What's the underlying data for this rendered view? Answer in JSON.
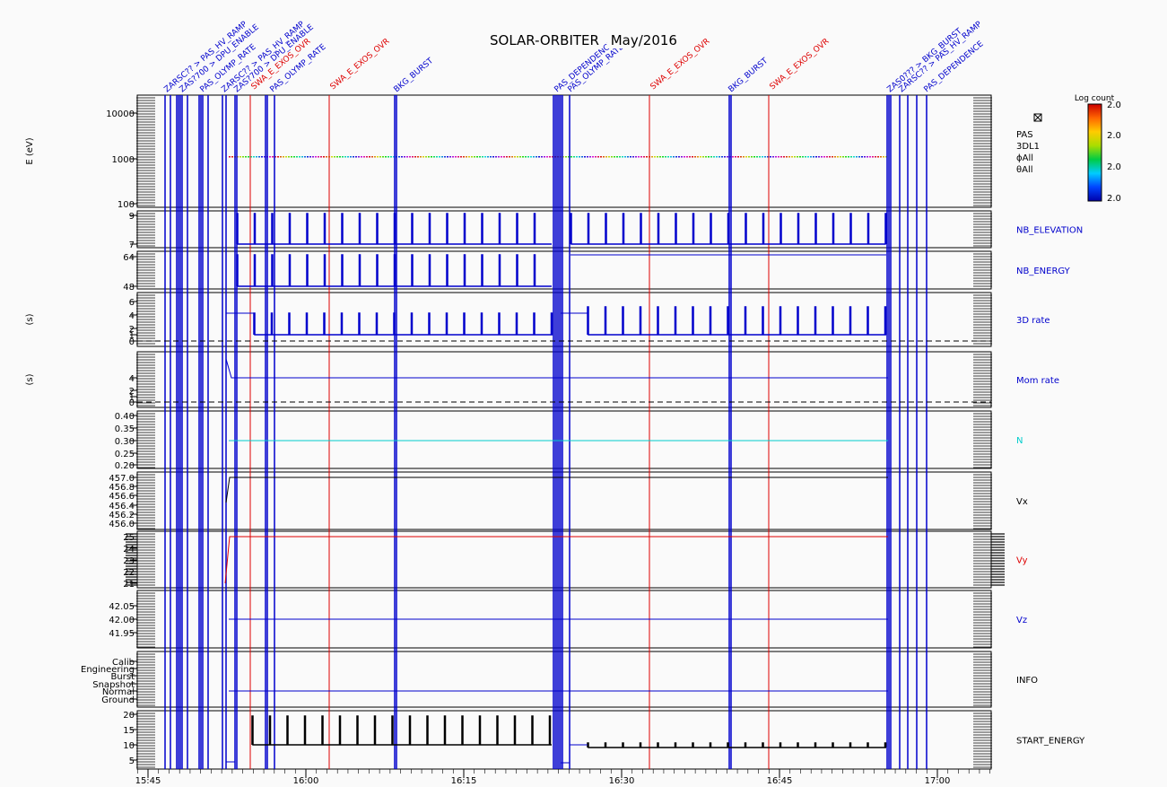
{
  "title": "SOLAR-ORBITER",
  "title_suffix": "May/2016",
  "chart_data": {
    "type": "line",
    "time_axis": {
      "ticks": [
        "15:45",
        "16:00",
        "16:15",
        "16:30",
        "16:45",
        "17:00"
      ],
      "range": [
        "15:45",
        "17:05"
      ]
    },
    "colorbar": {
      "title": "Log count",
      "ticks": [
        "2.0",
        "2.0",
        "2.0",
        "2.0"
      ]
    },
    "event_labels_blue": [
      "ZARSC?? > PAS_HV_RAMP",
      "ZAS?700 > DPU_ENABLE",
      "PAS_OLYMP_RATE",
      "BKG_BURST",
      "PAS_DEPENDENCE",
      "ZAS0??? > BKG_BURST"
    ],
    "event_labels_red": [
      "SWA_E_EXOS_OVR",
      "SWA_E_EXOS_OVR",
      "SWA_E_EXOS_OVR",
      "SWA_E_EXOS_OVR",
      "SWA_E_EXOS_OVR",
      "SWA_E_EXOS_OVR"
    ],
    "panels": [
      {
        "ylabel": "E (eV)",
        "right_label": "PAS\n3DL1\nϕAll\nθAll",
        "ticks": [
          "10000",
          "1000",
          "100"
        ],
        "type": "spectrogram",
        "line_value": 1000
      },
      {
        "ylabel": "",
        "right_label": "NB_ELEVATION",
        "ticks": [
          "9",
          "7"
        ],
        "baseline": 7,
        "peak": 9
      },
      {
        "ylabel": "",
        "right_label": "NB_ENERGY",
        "ticks": [
          "64",
          "48"
        ],
        "baseline": 48,
        "peak": 64
      },
      {
        "ylabel": "(s)",
        "right_label": "3D rate",
        "ticks": [
          "6",
          "4",
          "2",
          "1",
          "0"
        ],
        "baseline": 1,
        "peak": 4
      },
      {
        "ylabel": "(s)",
        "right_label": "Mom rate",
        "ticks": [
          "4",
          "2",
          "1",
          "0"
        ],
        "value": 4
      },
      {
        "ylabel": "",
        "right_label": "N",
        "ticks": [
          "0.40",
          "0.35",
          "0.30",
          "0.25",
          "0.20"
        ],
        "value": 0.3
      },
      {
        "ylabel": "",
        "right_label": "Vx",
        "ticks": [
          "457.0",
          "456.8",
          "456.6",
          "456.4",
          "456.2",
          "456.0"
        ],
        "value": 457.0
      },
      {
        "ylabel": "",
        "right_label": "Vy",
        "ticks": [
          "25",
          "24",
          "23",
          "22",
          "21"
        ],
        "value": 25
      },
      {
        "ylabel": "",
        "right_label": "Vz",
        "ticks": [
          "42.05",
          "42.00",
          "41.95"
        ],
        "value": 42.0
      },
      {
        "ylabel": "",
        "right_label": "INFO",
        "ticks": [
          "Calib",
          "Engineering",
          "Burst",
          "Snapshot",
          "Normal",
          "Ground"
        ],
        "value": "Normal"
      },
      {
        "ylabel": "",
        "right_label": "START_ENERGY",
        "ticks": [
          "20",
          "15",
          "10",
          "5"
        ],
        "baseline": 10,
        "peak": 19
      }
    ],
    "colors": {
      "blue": "#0000cc",
      "red": "#dd0000",
      "cyan": "#00cccc",
      "black": "#000000"
    }
  }
}
